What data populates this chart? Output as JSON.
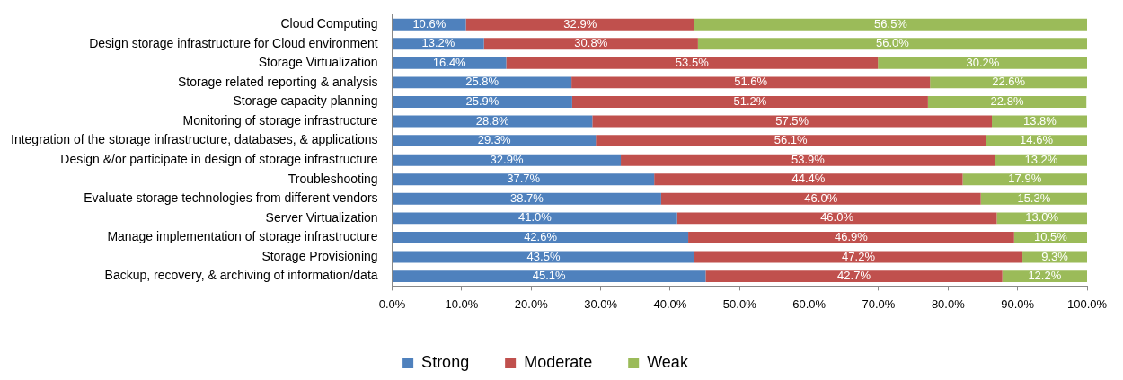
{
  "chart_data": {
    "type": "bar",
    "orientation": "horizontal",
    "stacked": true,
    "legend": "bottom",
    "grid": false,
    "categories": [
      "Cloud Computing",
      "Design storage infrastructure for Cloud environment",
      "Storage Virtualization",
      "Storage related reporting & analysis",
      "Storage capacity planning",
      "Monitoring of storage infrastructure",
      "Integration of the storage infrastructure, databases, & applications",
      "Design &/or participate in design of storage infrastructure",
      "Troubleshooting",
      "Evaluate storage technologies from different vendors",
      "Server Virtualization",
      "Manage implementation of storage infrastructure",
      "Storage Provisioning",
      "Backup, recovery, & archiving of information/data"
    ],
    "series": [
      {
        "name": "Strong",
        "color": "#4f81bd",
        "values": [
          10.6,
          13.2,
          16.4,
          25.8,
          25.9,
          28.8,
          29.3,
          32.9,
          37.7,
          38.7,
          41.0,
          42.6,
          43.5,
          45.1
        ],
        "value_labels": [
          "10.6%",
          "13.2%",
          "16.4%",
          "25.8%",
          "25.9%",
          "28.8%",
          "29.3%",
          "32.9%",
          "37.7%",
          "38.7%",
          "41.0%",
          "42.6%",
          "43.5%",
          "45.1%"
        ]
      },
      {
        "name": "Moderate",
        "color": "#c0504d",
        "values": [
          32.9,
          30.8,
          53.5,
          51.6,
          51.2,
          57.5,
          56.1,
          53.9,
          44.4,
          46.0,
          46.0,
          46.9,
          47.2,
          42.7
        ],
        "value_labels": [
          "32.9%",
          "30.8%",
          "53.5%",
          "51.6%",
          "51.2%",
          "57.5%",
          "56.1%",
          "53.9%",
          "44.4%",
          "46.0%",
          "46.0%",
          "46.9%",
          "47.2%",
          "42.7%"
        ]
      },
      {
        "name": "Weak",
        "color": "#9bbb59",
        "values": [
          56.5,
          56.0,
          30.2,
          22.6,
          22.8,
          13.8,
          14.6,
          13.2,
          17.9,
          15.3,
          13.0,
          10.5,
          9.3,
          12.2
        ],
        "value_labels": [
          "56.5%",
          "56.0%",
          "30.2%",
          "22.6%",
          "22.8%",
          "13.8%",
          "14.6%",
          "13.2%",
          "17.9%",
          "15.3%",
          "13.0%",
          "10.5%",
          "9.3%",
          "12.2%"
        ]
      }
    ],
    "xlim": [
      0,
      100
    ],
    "xticks": [
      {
        "value": 0,
        "label": "0.0%"
      },
      {
        "value": 10,
        "label": "10.0%"
      },
      {
        "value": 20,
        "label": "20.0%"
      },
      {
        "value": 30,
        "label": "30.0%"
      },
      {
        "value": 40,
        "label": "40.0%"
      },
      {
        "value": 50,
        "label": "50.0%"
      },
      {
        "value": 60,
        "label": "60.0%"
      },
      {
        "value": 70,
        "label": "70.0%"
      },
      {
        "value": 80,
        "label": "80.0%"
      },
      {
        "value": 90,
        "label": "90.0%"
      },
      {
        "value": 100,
        "label": "100.0%"
      }
    ]
  }
}
